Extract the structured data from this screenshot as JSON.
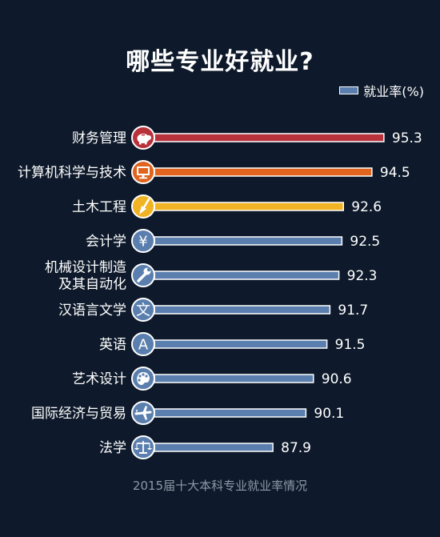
{
  "title": "哪些专业好就业?",
  "legend": "就业率(%)",
  "caption": "2015届十大本科专业就业率情况",
  "chart_data": {
    "type": "bar",
    "orientation": "horizontal",
    "series": [
      {
        "name": "就业率(%)",
        "values": [
          95.3,
          94.5,
          92.6,
          92.5,
          92.3,
          91.7,
          91.5,
          90.6,
          90.1,
          87.9
        ]
      }
    ],
    "categories": [
      "财务管理",
      "计算机科学与技术",
      "土木工程",
      "会计学",
      "机械设计制造及其自动化",
      "汉语言文学",
      "英语",
      "艺术设计",
      "国际经济与贸易",
      "法学"
    ],
    "category_lines": [
      [
        "财务管理"
      ],
      [
        "计算机科学与技术"
      ],
      [
        "土木工程"
      ],
      [
        "会计学"
      ],
      [
        "机械设计制造",
        "及其自动化"
      ],
      [
        "汉语言文学"
      ],
      [
        "英语"
      ],
      [
        "艺术设计"
      ],
      [
        "国际经济与贸易"
      ],
      [
        "法学"
      ]
    ],
    "value_labels": [
      "95.3",
      "94.5",
      "92.6",
      "92.5",
      "92.3",
      "91.7",
      "91.5",
      "90.6",
      "90.1",
      "87.9"
    ],
    "icons": [
      "piggy-bank-icon",
      "computer-monitor-icon",
      "trowel-icon",
      "yen-icon",
      "wrench-icon",
      "wen-character-icon",
      "letter-a-icon",
      "palette-icon",
      "airplane-icon",
      "scales-icon"
    ],
    "icon_glyphs": [
      "",
      "",
      "",
      "¥",
      "",
      "文",
      "A",
      "",
      "",
      ""
    ],
    "bar_colors": [
      "#b8323c",
      "#e0641e",
      "#f0b323",
      "#5a7fae",
      "#5a7fae",
      "#5a7fae",
      "#5a7fae",
      "#5a7fae",
      "#5a7fae",
      "#5a7fae"
    ],
    "icon_colors": [
      "#b8323c",
      "#e0641e",
      "#f0b323",
      "#5a7fae",
      "#5a7fae",
      "#5a7fae",
      "#5a7fae",
      "#5a7fae",
      "#5a7fae",
      "#5a7fae"
    ],
    "xlim": [
      80,
      96
    ],
    "grid": false,
    "legend_position": "top-right"
  }
}
